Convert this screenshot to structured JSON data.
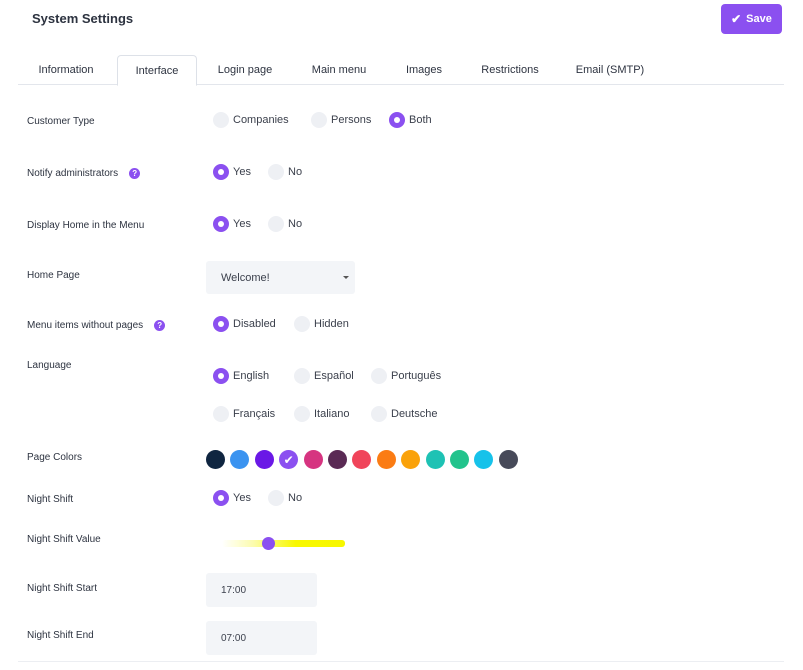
{
  "header": {
    "title": "System Settings",
    "save_label": "Save"
  },
  "tabs": [
    {
      "label": "Information",
      "active": false
    },
    {
      "label": "Interface",
      "active": true
    },
    {
      "label": "Login page",
      "active": false
    },
    {
      "label": "Main menu",
      "active": false
    },
    {
      "label": "Images",
      "active": false
    },
    {
      "label": "Restrictions",
      "active": false
    },
    {
      "label": "Email (SMTP)",
      "active": false
    }
  ],
  "settings": {
    "customer_type": {
      "label": "Customer Type",
      "options": [
        "Companies",
        "Persons",
        "Both"
      ],
      "selected": "Both"
    },
    "notify_admins": {
      "label": "Notify administrators",
      "options": [
        "Yes",
        "No"
      ],
      "selected": "Yes"
    },
    "display_home": {
      "label": "Display Home in the Menu",
      "options": [
        "Yes",
        "No"
      ],
      "selected": "Yes"
    },
    "home_page": {
      "label": "Home Page",
      "value": "Welcome!"
    },
    "menu_items": {
      "label": "Menu items without pages",
      "options": [
        "Disabled",
        "Hidden"
      ],
      "selected": "Disabled"
    },
    "language": {
      "label": "Language",
      "options": [
        "English",
        "Español",
        "Português",
        "Français",
        "Italiano",
        "Deutsche"
      ],
      "selected": "English"
    },
    "page_colors": {
      "label": "Page Colors",
      "colors": [
        "#0f2540",
        "#3a93f0",
        "#6a18e6",
        "#8b50f0",
        "#d63480",
        "#5a2a54",
        "#f0445a",
        "#fb7c14",
        "#faa20a",
        "#1ec2b4",
        "#22c38c",
        "#16c2ea",
        "#474a59"
      ],
      "selected_index": 3
    },
    "night_shift": {
      "label": "Night Shift",
      "options": [
        "Yes",
        "No"
      ],
      "selected": "Yes"
    },
    "night_shift_value": {
      "label": "Night Shift Value",
      "value_fraction": 0.38
    },
    "night_shift_start": {
      "label": "Night Shift Start",
      "value": "17:00"
    },
    "night_shift_end": {
      "label": "Night Shift End",
      "value": "07:00"
    }
  },
  "icons": {
    "save": "check-icon",
    "help": "question-icon",
    "select": "caret-down-icon"
  }
}
